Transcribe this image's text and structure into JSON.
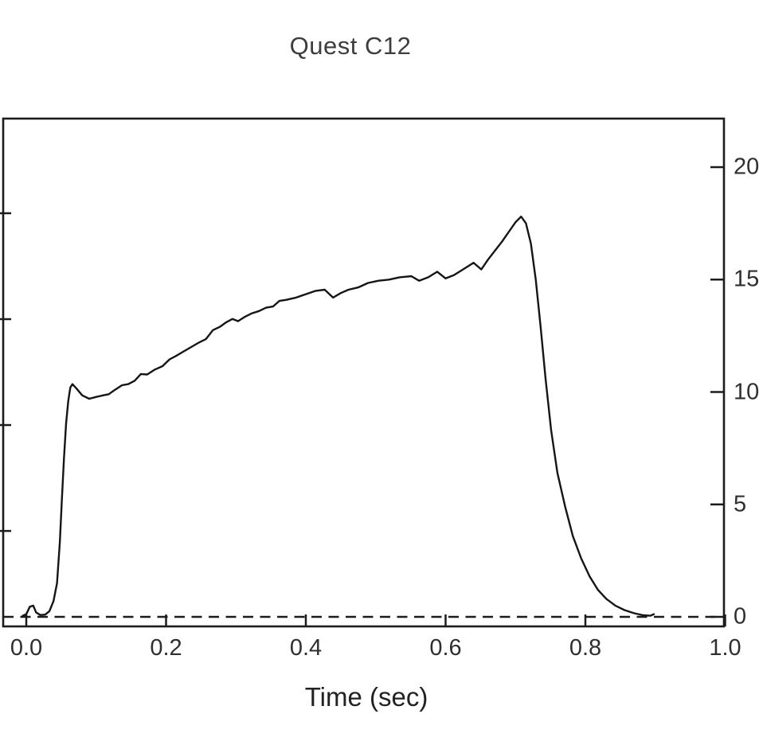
{
  "chart": {
    "title": "Quest C12",
    "x_axis": {
      "label": "Time (sec)",
      "ticks": [
        {
          "value": 0.0,
          "label": "0.0"
        },
        {
          "value": 0.2,
          "label": "0.2"
        },
        {
          "value": 0.4,
          "label": "0.4"
        },
        {
          "value": 0.6,
          "label": "0.6"
        },
        {
          "value": 0.8,
          "label": "0.8"
        },
        {
          "value": 1.0,
          "label": "1.0"
        }
      ]
    },
    "right_y_axis": {
      "ticks": [
        {
          "value": 0,
          "label": "0"
        },
        {
          "value": 5,
          "label": "5"
        },
        {
          "value": 10,
          "label": "10"
        },
        {
          "value": 15,
          "label": "15"
        },
        {
          "value": 20,
          "label": "20"
        }
      ]
    },
    "left_y_axis": {
      "tick_values_right_scale": [
        17.95,
        13.24,
        8.53,
        3.82
      ]
    }
  },
  "chart_data": {
    "type": "line",
    "title": "Quest C12",
    "xlabel": "Time (sec)",
    "ylabel": "",
    "xlim": [
      -0.033,
      1.0
    ],
    "ylim_right": [
      0,
      22.2
    ],
    "x_ticks": [
      0.0,
      0.2,
      0.4,
      0.6,
      0.8,
      1.0
    ],
    "y_ticks_right": [
      0,
      5,
      10,
      15,
      20
    ],
    "grid": false,
    "baseline": {
      "y": 0,
      "style": "dashed"
    },
    "series": [
      {
        "name": "thrust-trace",
        "points": [
          [
            -0.005,
            0.05
          ],
          [
            0.0,
            0.12
          ],
          [
            0.005,
            0.45
          ],
          [
            0.01,
            0.5
          ],
          [
            0.014,
            0.2
          ],
          [
            0.02,
            0.08
          ],
          [
            0.027,
            0.1
          ],
          [
            0.033,
            0.25
          ],
          [
            0.039,
            0.7
          ],
          [
            0.044,
            1.5
          ],
          [
            0.048,
            3.3
          ],
          [
            0.051,
            5.3
          ],
          [
            0.054,
            7.1
          ],
          [
            0.057,
            8.6
          ],
          [
            0.06,
            9.6
          ],
          [
            0.063,
            10.2
          ],
          [
            0.066,
            10.35
          ],
          [
            0.072,
            10.15
          ],
          [
            0.08,
            9.85
          ],
          [
            0.09,
            9.7
          ],
          [
            0.1,
            9.78
          ],
          [
            0.11,
            9.85
          ],
          [
            0.118,
            9.9
          ],
          [
            0.127,
            10.1
          ],
          [
            0.137,
            10.3
          ],
          [
            0.146,
            10.35
          ],
          [
            0.155,
            10.5
          ],
          [
            0.164,
            10.8
          ],
          [
            0.173,
            10.78
          ],
          [
            0.184,
            11.0
          ],
          [
            0.195,
            11.15
          ],
          [
            0.205,
            11.45
          ],
          [
            0.214,
            11.6
          ],
          [
            0.225,
            11.8
          ],
          [
            0.236,
            12.0
          ],
          [
            0.247,
            12.2
          ],
          [
            0.257,
            12.35
          ],
          [
            0.267,
            12.75
          ],
          [
            0.277,
            12.9
          ],
          [
            0.286,
            13.1
          ],
          [
            0.295,
            13.25
          ],
          [
            0.303,
            13.15
          ],
          [
            0.313,
            13.35
          ],
          [
            0.323,
            13.5
          ],
          [
            0.333,
            13.6
          ],
          [
            0.343,
            13.75
          ],
          [
            0.353,
            13.8
          ],
          [
            0.362,
            14.05
          ],
          [
            0.372,
            14.1
          ],
          [
            0.386,
            14.2
          ],
          [
            0.4,
            14.35
          ],
          [
            0.414,
            14.5
          ],
          [
            0.427,
            14.55
          ],
          [
            0.439,
            14.2
          ],
          [
            0.45,
            14.4
          ],
          [
            0.461,
            14.55
          ],
          [
            0.475,
            14.65
          ],
          [
            0.489,
            14.85
          ],
          [
            0.504,
            14.95
          ],
          [
            0.519,
            15.0
          ],
          [
            0.534,
            15.1
          ],
          [
            0.551,
            15.15
          ],
          [
            0.562,
            14.95
          ],
          [
            0.575,
            15.1
          ],
          [
            0.588,
            15.35
          ],
          [
            0.6,
            15.05
          ],
          [
            0.612,
            15.2
          ],
          [
            0.625,
            15.45
          ],
          [
            0.64,
            15.75
          ],
          [
            0.651,
            15.45
          ],
          [
            0.661,
            15.9
          ],
          [
            0.671,
            16.3
          ],
          [
            0.681,
            16.7
          ],
          [
            0.691,
            17.15
          ],
          [
            0.7,
            17.55
          ],
          [
            0.708,
            17.8
          ],
          [
            0.715,
            17.5
          ],
          [
            0.722,
            16.6
          ],
          [
            0.729,
            15.0
          ],
          [
            0.736,
            12.9
          ],
          [
            0.743,
            10.6
          ],
          [
            0.751,
            8.3
          ],
          [
            0.76,
            6.4
          ],
          [
            0.771,
            4.9
          ],
          [
            0.782,
            3.6
          ],
          [
            0.794,
            2.6
          ],
          [
            0.806,
            1.8
          ],
          [
            0.818,
            1.2
          ],
          [
            0.83,
            0.8
          ],
          [
            0.843,
            0.5
          ],
          [
            0.856,
            0.3
          ],
          [
            0.87,
            0.16
          ],
          [
            0.883,
            0.07
          ],
          [
            0.893,
            0.05
          ],
          [
            0.898,
            0.12
          ]
        ]
      }
    ],
    "legend": null
  },
  "colors": {
    "background": "#ffffff",
    "axis": "#1c1c1c",
    "curve": "#151515",
    "title_text": "#3d3d3d",
    "tick_text": "#2f2f2f"
  }
}
